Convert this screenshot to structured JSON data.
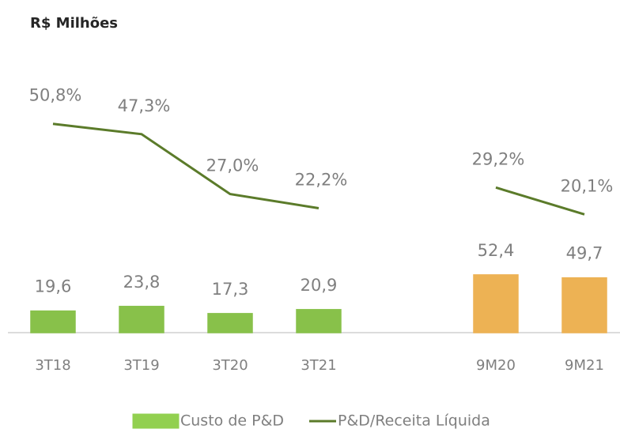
{
  "chart_data": {
    "type": "bar-line",
    "title": "R$ Milhões",
    "categories": [
      "3T18",
      "3T19",
      "3T20",
      "3T21",
      null,
      "9M20",
      "9M21"
    ],
    "series": [
      {
        "name": "Custo de P&D",
        "type": "bar",
        "color": "#92d050",
        "colors": [
          "#92d050",
          "#92d050",
          "#92d050",
          "#92d050",
          null,
          "#ffbf5a",
          "#ffbf5a"
        ],
        "values": [
          19.6,
          23.8,
          17.3,
          20.9,
          null,
          52.4,
          49.7
        ],
        "value_labels": [
          "19,6",
          "23,8",
          "17,3",
          "20,9",
          null,
          "52,4",
          "49,7"
        ]
      },
      {
        "name": "P&D/Receita Líquida",
        "type": "line",
        "axis": "y2",
        "color": "#5b7b2a",
        "values": [
          50.8,
          47.3,
          27.0,
          22.2,
          null,
          29.2,
          20.1
        ],
        "value_labels": [
          "50,8%",
          "47,3%",
          "27,0%",
          "22,2%",
          null,
          "29,2%",
          "20,1%"
        ]
      }
    ],
    "ylim": [
      0,
      230
    ],
    "y2lim": [
      -20,
      66
    ],
    "legend": "bottom"
  }
}
